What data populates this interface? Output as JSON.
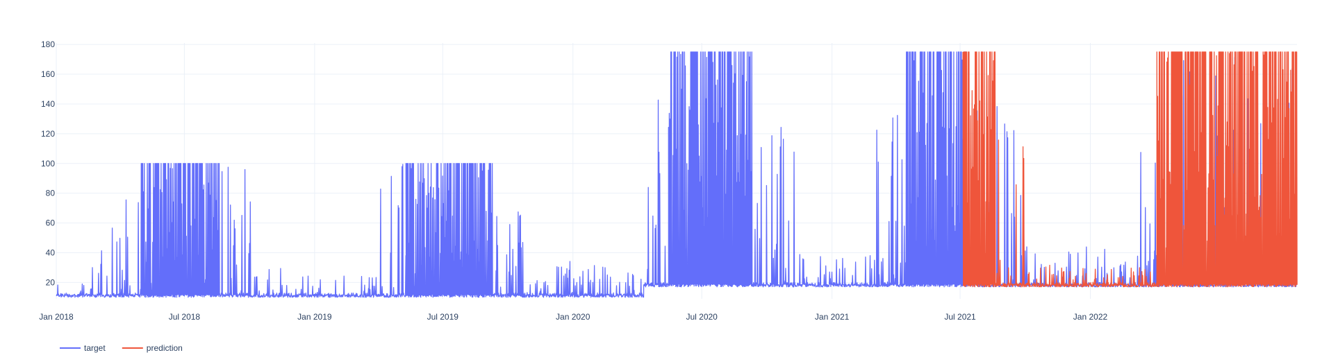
{
  "chart_data": {
    "type": "line",
    "title": "",
    "xlabel": "",
    "ylabel": "",
    "x_tick_labels": [
      "Jan 2018",
      "Jul 2018",
      "Jan 2019",
      "Jul 2019",
      "Jan 2020",
      "Jul 2020",
      "Jan 2021",
      "Jul 2021",
      "Jan 2022"
    ],
    "x_tick_dates": [
      "2018-01-01",
      "2018-07-01",
      "2019-01-01",
      "2019-07-01",
      "2020-01-01",
      "2020-07-01",
      "2021-01-01",
      "2021-07-01",
      "2022-01-01"
    ],
    "xlim": [
      "2018-01-01",
      "2022-10-20"
    ],
    "y_ticks": [
      20,
      40,
      60,
      80,
      100,
      120,
      140,
      160,
      180
    ],
    "ylim": [
      9,
      181
    ],
    "grid": true,
    "legend_position": "bottom-left",
    "series": [
      {
        "name": "target",
        "color": "#636efa",
        "envelope": [
          {
            "start": "2018-01-01",
            "end": "2018-02-20",
            "base": 10,
            "peak": 20
          },
          {
            "start": "2018-02-20",
            "end": "2018-04-01",
            "base": 10,
            "peak": 60
          },
          {
            "start": "2018-04-01",
            "end": "2018-05-01",
            "base": 10,
            "peak": 100
          },
          {
            "start": "2018-05-01",
            "end": "2018-08-20",
            "base": 10,
            "peak": 100,
            "dense": true
          },
          {
            "start": "2018-08-20",
            "end": "2018-10-05",
            "base": 10,
            "peak": 100
          },
          {
            "start": "2018-10-05",
            "end": "2018-11-15",
            "base": 10,
            "peak": 40
          },
          {
            "start": "2018-11-15",
            "end": "2019-04-01",
            "base": 10,
            "peak": 25
          },
          {
            "start": "2019-04-01",
            "end": "2019-05-10",
            "base": 10,
            "peak": 100
          },
          {
            "start": "2019-05-10",
            "end": "2019-09-10",
            "base": 10,
            "peak": 100,
            "dense": true
          },
          {
            "start": "2019-09-10",
            "end": "2019-10-25",
            "base": 10,
            "peak": 70
          },
          {
            "start": "2019-10-25",
            "end": "2020-04-10",
            "base": 10,
            "peak": 35
          },
          {
            "start": "2020-04-10",
            "end": "2020-05-15",
            "base": 17,
            "peak": 145
          },
          {
            "start": "2020-05-15",
            "end": "2020-09-10",
            "base": 17,
            "peak": 175,
            "dense": true
          },
          {
            "start": "2020-09-10",
            "end": "2020-11-10",
            "base": 17,
            "peak": 130
          },
          {
            "start": "2020-11-10",
            "end": "2021-03-01",
            "base": 17,
            "peak": 40
          },
          {
            "start": "2021-03-01",
            "end": "2021-04-15",
            "base": 17,
            "peak": 140
          },
          {
            "start": "2021-04-15",
            "end": "2021-07-10",
            "base": 17,
            "peak": 175,
            "dense": true
          },
          {
            "start": "2021-07-10",
            "end": "2021-10-01",
            "base": 17,
            "peak": 140
          },
          {
            "start": "2021-10-01",
            "end": "2022-03-10",
            "base": 17,
            "peak": 45
          },
          {
            "start": "2022-03-10",
            "end": "2022-10-20",
            "base": 17,
            "peak": 175
          }
        ]
      },
      {
        "name": "prediction",
        "color": "#ef553b",
        "envelope": [
          {
            "start": "2021-07-05",
            "end": "2021-08-20",
            "base": 17,
            "peak": 175,
            "dense": true
          },
          {
            "start": "2021-08-20",
            "end": "2021-10-01",
            "base": 17,
            "peak": 120
          },
          {
            "start": "2021-10-01",
            "end": "2021-11-15",
            "base": 17,
            "peak": 40
          },
          {
            "start": "2021-11-15",
            "end": "2022-04-05",
            "base": 17,
            "peak": 30
          },
          {
            "start": "2022-04-05",
            "end": "2022-10-20",
            "base": 17,
            "peak": 175,
            "dense": true
          }
        ]
      }
    ]
  }
}
